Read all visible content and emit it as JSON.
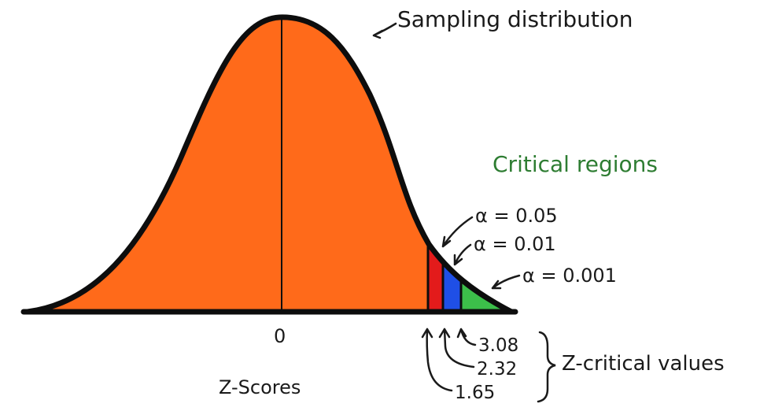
{
  "title": "Sampling distribution",
  "critical_regions_label": "Critical regions",
  "zero_label": "0",
  "x_axis_label": "Z-Scores",
  "z_critical_label": "Z-critical values",
  "alphas": [
    {
      "label": "α = 0.05"
    },
    {
      "label": "α = 0.01"
    },
    {
      "label": "α = 0.001"
    }
  ],
  "critical_values": [
    {
      "label": "3.08"
    },
    {
      "label": "2.32"
    },
    {
      "label": "1.65"
    }
  ],
  "colors": {
    "curve_fill": "#ff6a1a",
    "outline": "#0d0d0d",
    "region_005": "#e31b1b",
    "region_001": "#1f4fe6",
    "region_0001": "#3cbf4a",
    "green_text": "#2e7d32"
  }
}
